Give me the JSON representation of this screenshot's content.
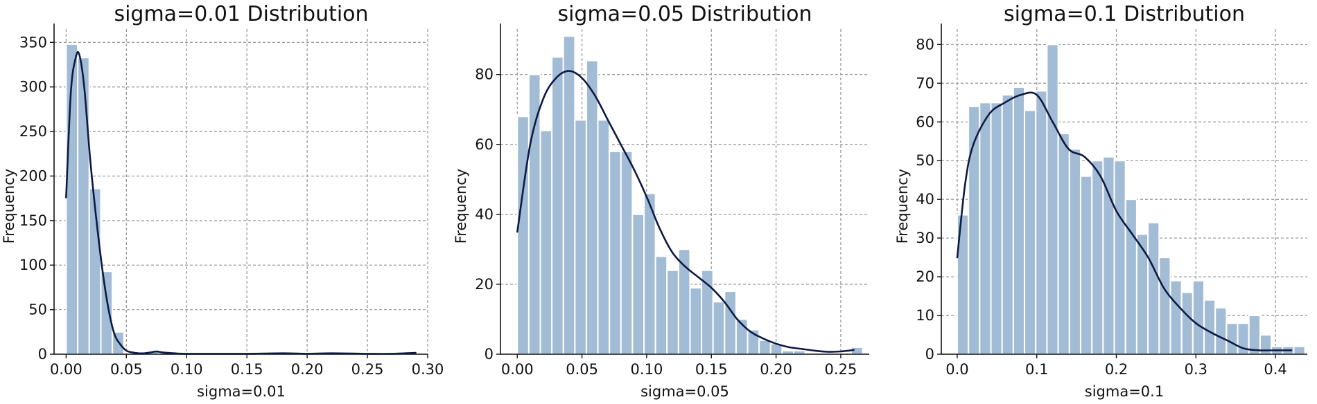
{
  "chart_data": [
    {
      "type": "histogram",
      "title": "sigma=0.01 Distribution",
      "xlabel": "sigma=0.01",
      "ylabel": "Frequency",
      "xlim": [
        -0.01,
        0.3
      ],
      "ylim": [
        0,
        365
      ],
      "xticks": [
        0.0,
        0.05,
        0.1,
        0.15,
        0.2,
        0.25,
        0.3
      ],
      "xtick_labels": [
        "0.00",
        "0.05",
        "0.10",
        "0.15",
        "0.20",
        "0.25",
        "0.30"
      ],
      "yticks": [
        0,
        50,
        100,
        150,
        200,
        250,
        300,
        350
      ],
      "ytick_labels": [
        "0",
        "50",
        "100",
        "150",
        "200",
        "250",
        "300",
        "350"
      ],
      "grid": true,
      "bin_start": 0.0,
      "bin_width": 0.0096,
      "values": [
        348,
        333,
        186,
        93,
        25,
        0,
        0,
        3,
        0,
        0,
        0,
        0,
        0,
        0,
        0,
        0,
        0,
        0,
        0,
        0,
        0,
        0,
        0,
        0,
        0,
        0,
        0,
        0,
        0,
        1
      ],
      "kde": {
        "x": [
          0.0,
          0.004,
          0.008,
          0.011,
          0.015,
          0.02,
          0.025,
          0.03,
          0.035,
          0.04,
          0.045,
          0.05,
          0.055,
          0.06,
          0.065,
          0.07,
          0.075,
          0.08,
          0.09,
          0.1,
          0.15,
          0.18,
          0.2,
          0.22,
          0.25,
          0.27,
          0.29
        ],
        "y": [
          176,
          295,
          333,
          336,
          300,
          218,
          152,
          96,
          52,
          23,
          11,
          4,
          2,
          1,
          1,
          2,
          3,
          2,
          1,
          0.5,
          0.5,
          1,
          0.5,
          1,
          0.5,
          0.5,
          1.5
        ]
      }
    },
    {
      "type": "histogram",
      "title": "sigma=0.05 Distribution",
      "xlabel": "sigma=0.05",
      "ylabel": "Frequency",
      "xlim": [
        -0.013,
        0.272
      ],
      "ylim": [
        0,
        93
      ],
      "xticks": [
        0.0,
        0.05,
        0.1,
        0.15,
        0.2,
        0.25
      ],
      "xtick_labels": [
        "0.00",
        "0.05",
        "0.10",
        "0.15",
        "0.20",
        "0.25"
      ],
      "yticks": [
        0,
        20,
        40,
        60,
        80
      ],
      "ytick_labels": [
        "0",
        "20",
        "40",
        "60",
        "80"
      ],
      "grid": true,
      "bin_start": 0.0,
      "bin_width": 0.0089,
      "values": [
        68,
        80,
        64,
        85,
        91,
        67,
        84,
        67,
        58,
        58,
        40,
        46,
        28,
        24,
        30,
        19,
        24,
        15,
        18,
        10,
        7,
        4,
        3,
        1,
        1,
        0,
        0,
        0,
        0,
        2
      ],
      "kde": {
        "x": [
          0.0,
          0.01,
          0.02,
          0.03,
          0.04,
          0.05,
          0.06,
          0.07,
          0.08,
          0.09,
          0.1,
          0.11,
          0.12,
          0.13,
          0.14,
          0.15,
          0.16,
          0.17,
          0.18,
          0.19,
          0.2,
          0.21,
          0.22,
          0.23,
          0.24,
          0.25,
          0.26
        ],
        "y": [
          35,
          60,
          73,
          79,
          81,
          79,
          74,
          67,
          60,
          53,
          45,
          36,
          29,
          25,
          22,
          19,
          15,
          10,
          6.5,
          4.5,
          3,
          2,
          1.5,
          1,
          0.7,
          0.8,
          1.2
        ]
      }
    },
    {
      "type": "histogram",
      "title": "sigma=0.1 Distribution",
      "xlabel": "sigma=0.1",
      "ylabel": "Frequency",
      "xlim": [
        -0.02,
        0.44
      ],
      "ylim": [
        0,
        84
      ],
      "xticks": [
        0.0,
        0.1,
        0.2,
        0.3,
        0.4
      ],
      "xtick_labels": [
        "0.0",
        "0.1",
        "0.2",
        "0.3",
        "0.4"
      ],
      "yticks": [
        0,
        10,
        20,
        30,
        40,
        50,
        60,
        70,
        80
      ],
      "ytick_labels": [
        "0",
        "10",
        "20",
        "30",
        "40",
        "50",
        "60",
        "70",
        "80"
      ],
      "grid": true,
      "bin_start": 0.0,
      "bin_width": 0.0141,
      "values": [
        36,
        64,
        65,
        65,
        67,
        69,
        63,
        68,
        80,
        57,
        53,
        46,
        50,
        51,
        50,
        40,
        31,
        34,
        25,
        19,
        16,
        19,
        14,
        12,
        8,
        8,
        10,
        5,
        2,
        2,
        2
      ],
      "kde": {
        "x": [
          0.0,
          0.01,
          0.02,
          0.04,
          0.06,
          0.08,
          0.1,
          0.12,
          0.14,
          0.16,
          0.18,
          0.2,
          0.22,
          0.24,
          0.26,
          0.28,
          0.3,
          0.32,
          0.34,
          0.36,
          0.38,
          0.4,
          0.42
        ],
        "y": [
          25,
          44,
          54,
          62,
          65,
          67,
          67,
          60,
          53,
          51,
          46,
          37,
          31,
          25,
          17,
          12,
          8,
          5.5,
          3.5,
          1.5,
          1,
          1,
          1
        ]
      }
    }
  ]
}
